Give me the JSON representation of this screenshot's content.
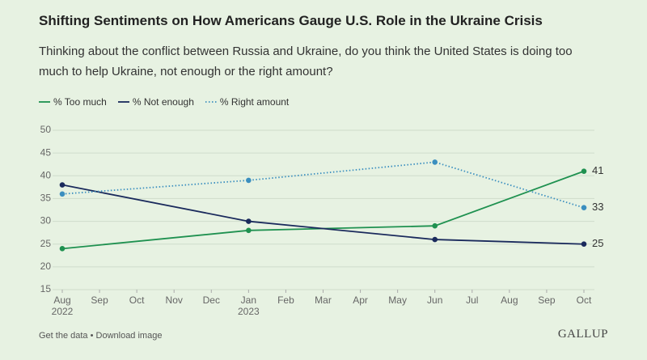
{
  "chart_data": {
    "type": "line",
    "title": "Shifting Sentiments on How Americans Gauge U.S. Role in the Ukraine Crisis",
    "subtitle": "Thinking about the conflict between Russia and Ukraine, do you think the United States is doing too much to help Ukraine, not enough or the right amount?",
    "x": [
      "2022-08",
      "2023-01",
      "2023-06",
      "2023-10"
    ],
    "series": [
      {
        "name": "% Too much",
        "color": "#1f9150",
        "dash": "solid",
        "values": [
          24,
          28,
          29,
          41
        ]
      },
      {
        "name": "% Not enough",
        "color": "#1a2a5c",
        "dash": "solid",
        "values": [
          38,
          30,
          26,
          25
        ]
      },
      {
        "name": "% Right amount",
        "color": "#3b8fbf",
        "dash": "dotted",
        "values": [
          36,
          39,
          43,
          33
        ]
      }
    ],
    "xlim": [
      "2022-08",
      "2023-10"
    ],
    "xticks": [
      {
        "value": "2022-08",
        "label": "Aug"
      },
      {
        "value": "2022-09",
        "label": "Sep"
      },
      {
        "value": "2022-10",
        "label": "Oct"
      },
      {
        "value": "2022-11",
        "label": "Nov"
      },
      {
        "value": "2022-12",
        "label": "Dec"
      },
      {
        "value": "2023-01",
        "label": "Jan"
      },
      {
        "value": "2023-02",
        "label": "Feb"
      },
      {
        "value": "2023-03",
        "label": "Mar"
      },
      {
        "value": "2023-04",
        "label": "Apr"
      },
      {
        "value": "2023-05",
        "label": "May"
      },
      {
        "value": "2023-06",
        "label": "Jun"
      },
      {
        "value": "2023-07",
        "label": "Jul"
      },
      {
        "value": "2023-08",
        "label": "Aug"
      },
      {
        "value": "2023-09",
        "label": "Sep"
      },
      {
        "value": "2023-10",
        "label": "Oct"
      }
    ],
    "xtick_years": [
      {
        "value": "2022-08",
        "label": "2022"
      },
      {
        "value": "2023-01",
        "label": "2023"
      }
    ],
    "ylim": [
      15,
      50
    ],
    "yticks": [
      15,
      20,
      25,
      30,
      35,
      40,
      45,
      50
    ],
    "grid": true,
    "legend": "top-left",
    "footer": "Get the data • Download image",
    "source_logo": "GALLUP"
  }
}
